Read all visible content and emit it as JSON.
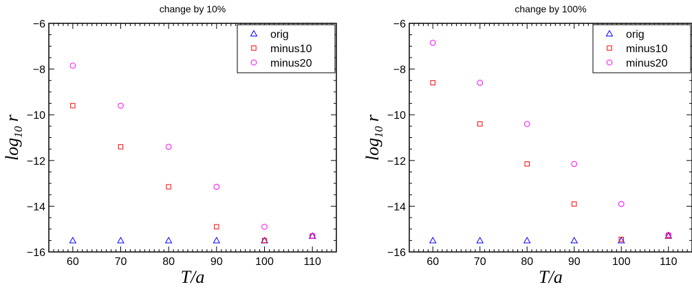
{
  "chart_data": [
    {
      "type": "scatter",
      "title": "change by 10%",
      "xlabel": "T/a",
      "ylabel": "log10 r",
      "xlim": [
        55,
        115
      ],
      "ylim": [
        -16,
        -6
      ],
      "xticks": [
        60,
        70,
        80,
        90,
        100,
        110
      ],
      "yticks": [
        -16,
        -14,
        -12,
        -10,
        -8,
        -6
      ],
      "legend_position": "top-right",
      "grid": false,
      "series": [
        {
          "name": "orig",
          "marker": "triangle",
          "color": "#0000ff",
          "points": [
            [
              60,
              -15.5
            ],
            [
              70,
              -15.5
            ],
            [
              80,
              -15.5
            ],
            [
              90,
              -15.5
            ],
            [
              100,
              -15.5
            ],
            [
              110,
              -15.3
            ]
          ]
        },
        {
          "name": "minus10",
          "marker": "square",
          "color": "#ff0000",
          "points": [
            [
              60,
              -9.6
            ],
            [
              70,
              -11.4
            ],
            [
              80,
              -13.15
            ],
            [
              90,
              -14.9
            ],
            [
              100,
              -15.5
            ],
            [
              110,
              -15.3
            ]
          ]
        },
        {
          "name": "minus20",
          "marker": "circle",
          "color": "#ff00ff",
          "points": [
            [
              60,
              -7.85
            ],
            [
              70,
              -9.6
            ],
            [
              80,
              -11.4
            ],
            [
              90,
              -13.15
            ],
            [
              100,
              -14.9
            ],
            [
              110,
              -15.3
            ]
          ]
        }
      ]
    },
    {
      "type": "scatter",
      "title": "change by 100%",
      "xlabel": "T/a",
      "ylabel": "log10 r",
      "xlim": [
        55,
        115
      ],
      "ylim": [
        -16,
        -6
      ],
      "xticks": [
        60,
        70,
        80,
        90,
        100,
        110
      ],
      "yticks": [
        -16,
        -14,
        -12,
        -10,
        -8,
        -6
      ],
      "legend_position": "top-right",
      "grid": false,
      "series": [
        {
          "name": "orig",
          "marker": "triangle",
          "color": "#0000ff",
          "points": [
            [
              60,
              -15.5
            ],
            [
              70,
              -15.5
            ],
            [
              80,
              -15.5
            ],
            [
              90,
              -15.5
            ],
            [
              100,
              -15.5
            ],
            [
              110,
              -15.3
            ]
          ]
        },
        {
          "name": "minus10",
          "marker": "square",
          "color": "#ff0000",
          "points": [
            [
              60,
              -8.6
            ],
            [
              70,
              -10.4
            ],
            [
              80,
              -12.15
            ],
            [
              90,
              -13.9
            ],
            [
              100,
              -15.45
            ],
            [
              110,
              -15.3
            ]
          ]
        },
        {
          "name": "minus20",
          "marker": "circle",
          "color": "#ff00ff",
          "points": [
            [
              60,
              -6.85
            ],
            [
              70,
              -8.6
            ],
            [
              80,
              -10.4
            ],
            [
              90,
              -12.15
            ],
            [
              100,
              -13.9
            ],
            [
              110,
              -15.25
            ]
          ]
        }
      ]
    }
  ]
}
